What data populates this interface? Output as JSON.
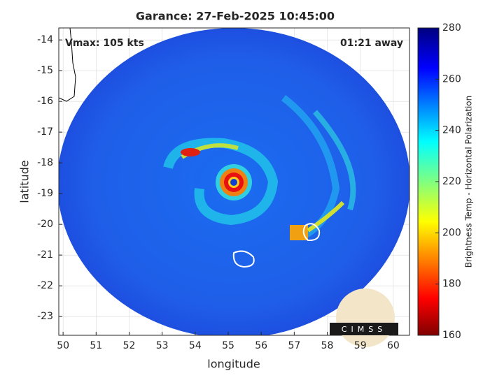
{
  "chart_data": {
    "type": "map",
    "title": "Garance: 27-Feb-2025 10:45:00",
    "annotations": [
      "Vmax: 105 kts",
      "01:21 away"
    ],
    "xlabel": "longitude",
    "ylabel": "latitude",
    "xlim": [
      49.87,
      60.49
    ],
    "ylim": [
      -23.61,
      -13.61
    ],
    "xticks": [
      50,
      51,
      52,
      53,
      54,
      55,
      56,
      57,
      58,
      59,
      60
    ],
    "yticks": [
      -14,
      -15,
      -16,
      -17,
      -18,
      -19,
      -20,
      -21,
      -22,
      -23
    ],
    "grid": true,
    "colorbar": {
      "label": "Brightness Temp - Horizontal Polarization",
      "lim": [
        160,
        280
      ],
      "ticks": [
        160,
        180,
        200,
        220,
        240,
        260,
        280
      ]
    },
    "logo": "CIMSS"
  }
}
